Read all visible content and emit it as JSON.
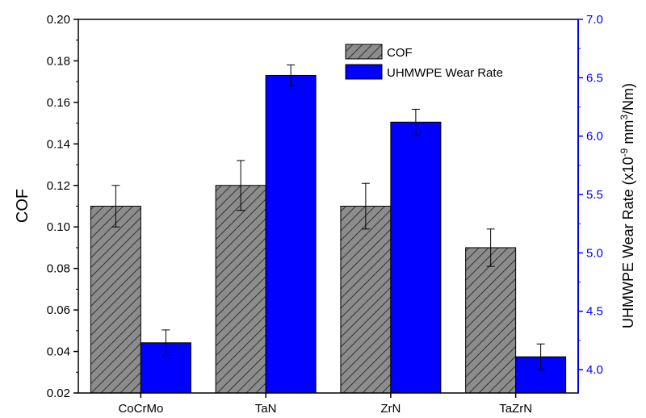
{
  "colors": {
    "cof_bar": "#8c8c8c",
    "cof_hatch": "#333333",
    "wear_bar": "#0000ff",
    "right_axis": "#0000ee",
    "axis": "#000000"
  },
  "chart_data": {
    "type": "bar",
    "categories": [
      "CoCrMo",
      "TaN",
      "ZrN",
      "TaZrN"
    ],
    "series": [
      {
        "name": "COF",
        "axis": "left",
        "pattern": "hatched-gray",
        "values": [
          0.11,
          0.12,
          0.11,
          0.09
        ],
        "errors": [
          0.01,
          0.012,
          0.011,
          0.009
        ]
      },
      {
        "name": "UHMWPE Wear Rate",
        "axis": "right",
        "pattern": "solid-blue",
        "values": [
          4.23,
          6.52,
          6.12,
          4.11
        ],
        "errors": [
          0.11,
          0.09,
          0.11,
          0.11
        ]
      }
    ],
    "ylabel": "COF",
    "ylabel_right_main": "UHMWPE Wear Rate ",
    "ylabel_right_units": "(x10",
    "ylabel_right_exp1": "-9",
    "ylabel_right_mid": " mm",
    "ylabel_right_exp2": "3",
    "ylabel_right_end": "/Nm)",
    "ylim": [
      0.02,
      0.2
    ],
    "yticks": [
      "0.02",
      "0.04",
      "0.06",
      "0.08",
      "0.10",
      "0.12",
      "0.14",
      "0.16",
      "0.18",
      "0.20"
    ],
    "ylim_right": [
      3.8,
      7.0
    ],
    "yticks_right": [
      "4.0",
      "4.5",
      "5.0",
      "5.5",
      "6.0",
      "6.5",
      "7.0"
    ],
    "legend_position": "top-right",
    "grid": false
  }
}
